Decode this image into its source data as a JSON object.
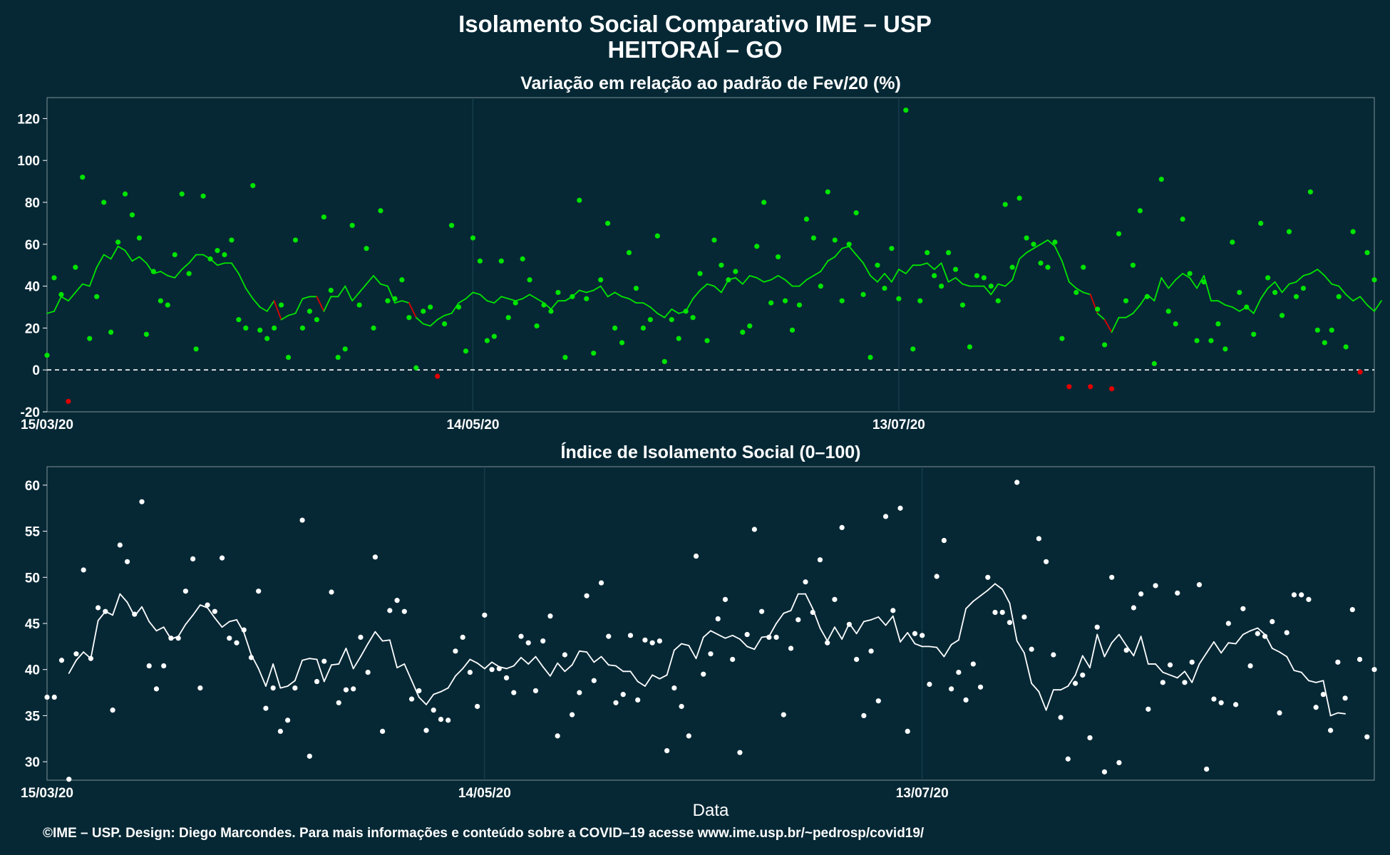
{
  "title_line1": "Isolamento Social Comparativo IME – USP",
  "title_line2": "HEITORAÍ – GO",
  "xlabel": "Data",
  "caption": "©IME – USP. Design: Diego Marcondes. Para mais informações e conteúdo sobre a COVID–19 acesse www.ime.usp.br/~pedrosp/covid19/",
  "colors": {
    "background": "#062835",
    "positive": "#00e400",
    "negative": "#e00000",
    "index": "#ffffff",
    "zero_line": "#ffffff"
  },
  "chart_data": [
    {
      "type": "scatter",
      "title": "Variação em relação ao padrão de Fev/20 (%)",
      "x_ticks": [
        "15/03/20",
        "14/05/20",
        "13/07/20"
      ],
      "ylim": [
        -20,
        130
      ],
      "y_ticks": [
        -20,
        0,
        20,
        40,
        60,
        80,
        100,
        120
      ],
      "reference_line": 0,
      "x_start": "15/03/20",
      "points": [
        7,
        44,
        36,
        -15,
        49,
        92,
        15,
        35,
        80,
        18,
        61,
        84,
        74,
        63,
        17,
        47,
        33,
        31,
        55,
        84,
        46,
        10,
        83,
        53,
        57,
        55,
        62,
        24,
        20,
        88,
        19,
        15,
        20,
        31,
        6,
        62,
        20,
        28,
        24,
        73,
        38,
        6,
        10,
        69,
        31,
        58,
        20,
        76,
        33,
        34,
        43,
        25,
        1,
        28,
        30,
        -3,
        22,
        69,
        30,
        9,
        63,
        52,
        14,
        16,
        52,
        25,
        32,
        53,
        43,
        21,
        31,
        28,
        37,
        6,
        35,
        81,
        34,
        8,
        43,
        70,
        20,
        13,
        56,
        39,
        20,
        24,
        64,
        4,
        24,
        15,
        28,
        25,
        46,
        14,
        62,
        50,
        43,
        47,
        18,
        21,
        59,
        80,
        32,
        54,
        33,
        19,
        31,
        72,
        63,
        40,
        85,
        62,
        33,
        60,
        75,
        36,
        6,
        50,
        39,
        58,
        34,
        124,
        10,
        33,
        56,
        45,
        40,
        56,
        48,
        31,
        11,
        45,
        44,
        40,
        33,
        79,
        49,
        82,
        63,
        60,
        51,
        49,
        61,
        15,
        -8,
        37,
        49,
        -8,
        29,
        12,
        -9,
        65,
        33,
        50,
        76,
        35,
        3,
        91,
        28,
        22,
        72,
        46,
        14,
        42,
        14,
        22,
        10,
        61,
        37,
        30,
        17,
        70,
        44,
        37,
        26,
        66,
        35,
        39,
        85,
        19,
        13,
        19,
        35,
        11,
        66,
        -1,
        56,
        43
      ],
      "moving_average": [
        27,
        28,
        35,
        33,
        37,
        41,
        40,
        49,
        55,
        53,
        59,
        57,
        52,
        54,
        51,
        46,
        47,
        45,
        44,
        48,
        51,
        55,
        55,
        53,
        50,
        51,
        51,
        46,
        39,
        34,
        30,
        28,
        33,
        24,
        26,
        27,
        34,
        35,
        35,
        28,
        35,
        35,
        40,
        33,
        37,
        41,
        45,
        41,
        40,
        32,
        33,
        32,
        25,
        22,
        21,
        24,
        26,
        27,
        32,
        34,
        37,
        36,
        33,
        32,
        35,
        34,
        33,
        34,
        36,
        34,
        32,
        29,
        33,
        33,
        35,
        38,
        37,
        38,
        40,
        35,
        37,
        35,
        34,
        32,
        32,
        30,
        27,
        25,
        29,
        27,
        28,
        34,
        38,
        41,
        40,
        37,
        43,
        44,
        41,
        45,
        44,
        42,
        43,
        45,
        43,
        40,
        40,
        43,
        45,
        47,
        52,
        54,
        58,
        59,
        55,
        51,
        45,
        42,
        46,
        42,
        48,
        46,
        50,
        50,
        51,
        48,
        51,
        42,
        44,
        41,
        40,
        40,
        40,
        36,
        41,
        40,
        43,
        53,
        56,
        58,
        60,
        62,
        59,
        52,
        42,
        39,
        37,
        36,
        27,
        24,
        18,
        25,
        25,
        27,
        31,
        36,
        33,
        44,
        39,
        43,
        46,
        44,
        39,
        45,
        33,
        33,
        31,
        30,
        28,
        30,
        27,
        34,
        39,
        42,
        37,
        41,
        42,
        45,
        46,
        48,
        45,
        41,
        40,
        36,
        33,
        35,
        31,
        28,
        33
      ],
      "ma_start_index": 0
    },
    {
      "type": "scatter",
      "title": "Índice de Isolamento Social (0–100)",
      "x_ticks": [
        "15/03/20",
        "14/05/20",
        "13/07/20"
      ],
      "ylim": [
        28,
        62
      ],
      "y_ticks": [
        30,
        35,
        40,
        45,
        50,
        55,
        60
      ],
      "x_start": "15/03/20",
      "points": [
        37,
        37,
        41,
        28.1,
        41.7,
        50.8,
        41.2,
        46.7,
        46.3,
        35.6,
        53.5,
        51.7,
        46,
        58.2,
        40.4,
        37.9,
        40.4,
        43.4,
        43.4,
        48.5,
        52,
        38,
        47,
        46.3,
        52.1,
        43.4,
        42.9,
        44.3,
        41.3,
        48.5,
        35.8,
        38,
        33.3,
        34.5,
        38,
        56.2,
        30.6,
        38.7,
        40.9,
        48.4,
        36.4,
        37.8,
        37.9,
        43.5,
        39.7,
        52.2,
        33.3,
        46.4,
        47.5,
        46.3,
        36.8,
        37.7,
        33.4,
        35.6,
        34.6,
        34.5,
        42,
        43.5,
        39.7,
        36,
        45.9,
        40,
        40.1,
        39.1,
        37.5,
        43.6,
        42.9,
        37.7,
        43.1,
        45.8,
        32.8,
        41.6,
        35.1,
        37.5,
        48,
        38.8,
        49.4,
        43.6,
        36.4,
        37.3,
        43.7,
        36.7,
        43.2,
        42.9,
        43.1,
        31.2,
        38,
        36,
        32.8,
        52.3,
        39.5,
        41.7,
        45.5,
        47.6,
        41.1,
        31,
        43.8,
        55.2,
        46.3,
        43.5,
        43.5,
        35.1,
        42.3,
        45.4,
        49.5,
        46.2,
        51.9,
        42.9,
        47.6,
        55.4,
        44.9,
        41.1,
        35,
        42,
        36.6,
        56.6,
        46.4,
        57.5,
        33.3,
        43.9,
        43.7,
        38.4,
        50.1,
        54,
        37.9,
        39.7,
        36.7,
        40.6,
        38.1,
        50,
        46.2,
        46.2,
        45.1,
        60.3,
        45.7,
        42.2,
        54.2,
        51.7,
        41.6,
        34.8,
        30.3,
        38.5,
        39.4,
        32.6,
        44.6,
        28.9,
        50,
        29.9,
        42.1,
        46.7,
        48.2,
        35.7,
        49.1,
        38.6,
        40.5,
        48.3,
        38.6,
        40.8,
        49.2,
        29.2,
        36.8,
        36.4,
        45,
        36.2,
        46.6,
        40.4,
        43.9,
        43.6,
        45.2,
        35.3,
        44,
        48.1,
        48.1,
        47.6,
        35.9,
        37.3,
        33.4,
        40.8,
        36.9,
        46.5,
        41.1,
        32.7,
        40
      ],
      "moving_average": [
        39.6,
        41,
        41.9,
        41.2,
        45.3,
        46.3,
        45.9,
        48.2,
        47.3,
        45.8,
        46.8,
        45.2,
        44.2,
        44.6,
        43.3,
        43.6,
        44.9,
        45.9,
        47,
        46.7,
        45.6,
        44.6,
        45.2,
        45.4,
        44,
        41.6,
        40.1,
        38.2,
        40.6,
        38,
        38.2,
        38.8,
        41,
        41.2,
        41.1,
        38.7,
        40.5,
        40.6,
        42.3,
        40.1,
        41.4,
        42.8,
        44.1,
        43.1,
        43.2,
        40.2,
        40.6,
        38.8,
        37,
        36.2,
        37.3,
        37.6,
        38,
        39.3,
        40.1,
        41.1,
        40.7,
        40.1,
        40.8,
        40.3,
        40.1,
        40.4,
        41.3,
        40.6,
        41.4,
        40.3,
        39.3,
        40.7,
        39.8,
        40.5,
        42,
        41.9,
        40.8,
        41.4,
        40.5,
        40.4,
        39.8,
        39.8,
        38.7,
        38.2,
        39.4,
        39,
        39.4,
        42.1,
        42.8,
        42.6,
        41.2,
        43.5,
        44.2,
        43.8,
        43.4,
        43.7,
        43.3,
        42.5,
        42.2,
        43.5,
        43.6,
        45,
        46.1,
        46.4,
        48.2,
        48.2,
        46.6,
        44.5,
        43.1,
        44.6,
        43.3,
        45,
        43.9,
        45.2,
        45.4,
        45.7,
        44.8,
        45.8,
        43,
        44,
        42.8,
        42.5,
        42.5,
        42.4,
        41.4,
        42.7,
        43.2,
        46.6,
        47.4,
        48,
        48.6,
        49.3,
        48.7,
        47.2,
        43.1,
        41.8,
        38.5,
        37.6,
        35.6,
        37.8,
        37.8,
        38.2,
        39.4,
        41.5,
        40.2,
        43.8,
        41.4,
        42.9,
        43.8,
        42.6,
        41.5,
        43.6,
        40.6,
        40.6,
        39.7,
        39.4,
        39.1,
        39.8,
        38.6,
        40.6,
        41.8,
        43,
        41.8,
        42.9,
        42.8,
        43.8,
        44.2,
        44.5,
        43.8,
        42.3,
        41.9,
        41.4,
        39.9,
        39.7,
        38.8,
        38.6,
        38.8,
        35,
        35.3,
        35.2
      ],
      "ma_start_index": 3
    }
  ]
}
